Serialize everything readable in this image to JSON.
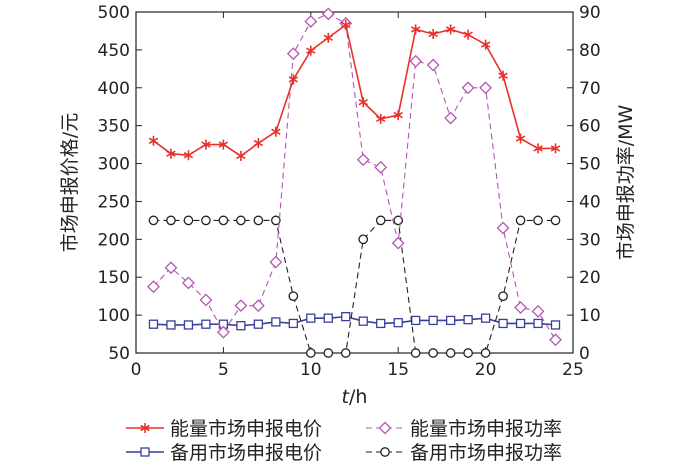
{
  "chart_data": {
    "type": "line",
    "x": [
      1,
      2,
      3,
      4,
      5,
      6,
      7,
      8,
      9,
      10,
      11,
      12,
      13,
      14,
      15,
      16,
      17,
      18,
      19,
      20,
      21,
      22,
      23,
      24
    ],
    "xlabel_italic": "t",
    "xlabel_unit": "/h",
    "ylabel_left": "市场申报价格/元",
    "ylabel_right": "市场申报功率/MW",
    "xlim": [
      0,
      25
    ],
    "ylim_left": [
      50,
      500
    ],
    "ylim_right": [
      0,
      90
    ],
    "xticks": [
      "0",
      "5",
      "10",
      "15",
      "20",
      "25"
    ],
    "yticks_left": [
      "50",
      "100",
      "150",
      "200",
      "250",
      "300",
      "350",
      "400",
      "450",
      "500"
    ],
    "yticks_right": [
      "0",
      "10",
      "20",
      "30",
      "40",
      "50",
      "60",
      "70",
      "80",
      "90"
    ],
    "series": [
      {
        "name": "能量市场申报电价",
        "axis": "left",
        "color": "#e8312a",
        "marker": "star",
        "dashed": false,
        "values": [
          330,
          313,
          311,
          325,
          325,
          310,
          327,
          342,
          411,
          449,
          466,
          483,
          381,
          359,
          364,
          477,
          471,
          477,
          470,
          457,
          416,
          333,
          320,
          320
        ]
      },
      {
        "name": "能量市场申报功率",
        "axis": "right",
        "color": "#b356b3",
        "marker": "diamond",
        "dashed": true,
        "values": [
          17.5,
          22.5,
          18.5,
          14,
          5.5,
          12.5,
          12.5,
          24,
          79,
          87.5,
          89.5,
          87,
          51,
          49,
          29,
          77,
          76,
          62,
          70,
          70,
          33,
          12,
          11,
          3.5
        ]
      },
      {
        "name": "备用市场申报电价",
        "axis": "left",
        "color": "#3a3f9a",
        "marker": "square",
        "dashed": false,
        "values": [
          88,
          87,
          87,
          88,
          88,
          86,
          88,
          91,
          89,
          96,
          96,
          98,
          92,
          89,
          90,
          93,
          93,
          93,
          94,
          96,
          89,
          89,
          89,
          87
        ]
      },
      {
        "name": "备用市场申报功率",
        "axis": "right",
        "color": "#222222",
        "marker": "circle",
        "dashed": true,
        "values": [
          35,
          35,
          35,
          35,
          35,
          35,
          35,
          35,
          15,
          0,
          0,
          0,
          30,
          35,
          35,
          0,
          0,
          0,
          0,
          0,
          15,
          35,
          35,
          35
        ]
      }
    ],
    "legend": [
      "能量市场申报电价",
      "能量市场申报功率",
      "备用市场申报电价",
      "备用市场申报功率"
    ]
  }
}
